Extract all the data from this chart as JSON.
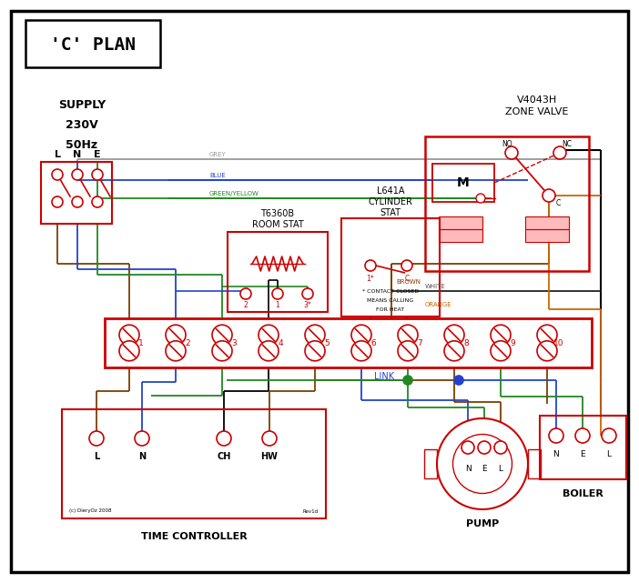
{
  "title": "'C' PLAN",
  "bg": "#ffffff",
  "red": "#cc0000",
  "blue": "#2244cc",
  "green": "#228822",
  "grey": "#999999",
  "brown": "#7B3F00",
  "orange": "#CC6600",
  "black": "#000000",
  "pink": "#ffbbbb",
  "supply_lines": [
    "SUPPLY",
    "230V",
    "50Hz"
  ],
  "lne": [
    "L",
    "N",
    "E"
  ],
  "tc_terms": [
    "L",
    "N",
    "CH",
    "HW"
  ],
  "pump_terms": [
    "N",
    "E",
    "L"
  ],
  "boiler_terms": [
    "N",
    "E",
    "L"
  ],
  "term_labels": [
    "1",
    "2",
    "3",
    "4",
    "5",
    "6",
    "7",
    "8",
    "9",
    "10"
  ]
}
